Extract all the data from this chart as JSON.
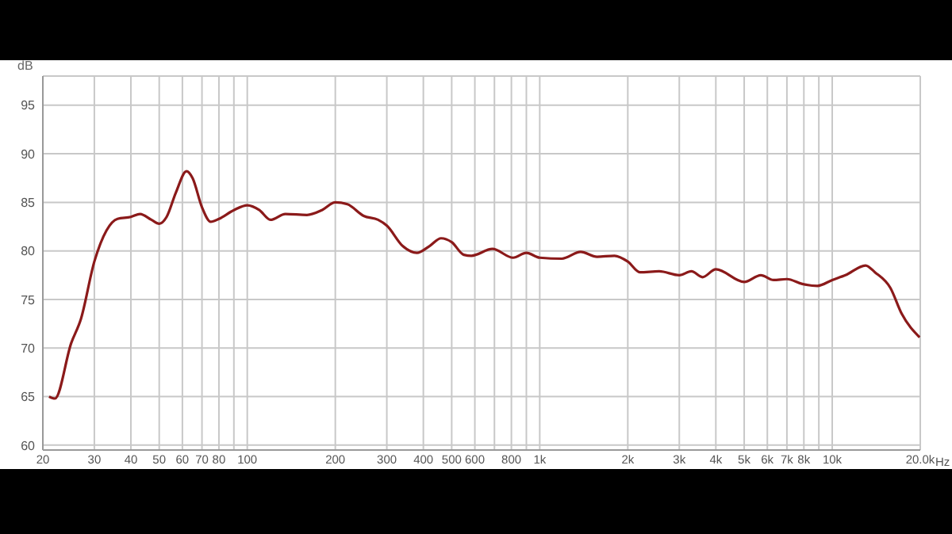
{
  "chart_data": {
    "type": "line",
    "ylabel": "dB",
    "xlabel": "Hz",
    "x": [
      21,
      22,
      25,
      27,
      30,
      33,
      36,
      40,
      43,
      47,
      50,
      53,
      57,
      62,
      65,
      70,
      75,
      80,
      90,
      100,
      110,
      120,
      135,
      160,
      180,
      200,
      220,
      250,
      280,
      300,
      340,
      380,
      420,
      460,
      500,
      550,
      584,
      689,
      811,
      900,
      1000,
      1190,
      1380,
      1570,
      1800,
      2000,
      2200,
      2560,
      3000,
      3300,
      3600,
      4000,
      5000,
      5700,
      6300,
      7000,
      7900,
      8900,
      10000,
      11100,
      13000,
      14000,
      15800,
      17300,
      19900
    ],
    "series": [
      {
        "color": "#8b1a1a",
        "values": [
          65.0,
          64.8,
          70.5,
          73.0,
          78.9,
          82.1,
          83.3,
          83.5,
          83.8,
          83.2,
          82.8,
          83.5,
          86.0,
          88.2,
          87.5,
          84.5,
          83.0,
          83.3,
          84.2,
          84.7,
          84.2,
          83.2,
          83.8,
          83.7,
          84.2,
          85.0,
          84.8,
          83.6,
          83.2,
          82.6,
          80.5,
          79.8,
          80.5,
          81.3,
          80.9,
          79.6,
          79.5,
          80.2,
          79.3,
          79.8,
          79.3,
          79.2,
          79.9,
          79.4,
          79.5,
          78.9,
          77.8,
          77.9,
          77.5,
          77.9,
          77.3,
          78.1,
          76.8,
          77.5,
          77.0,
          77.1,
          76.6,
          76.4,
          77.0,
          77.5,
          78.5,
          77.8,
          76.2,
          73.5,
          71.1
        ]
      }
    ],
    "log": "x",
    "xlim": [
      20,
      20000
    ],
    "ylim": [
      59.5,
      98
    ],
    "xticks": [
      20,
      30,
      40,
      50,
      60,
      70,
      80,
      {
        "value": 90,
        "label": null
      },
      100,
      200,
      300,
      400,
      500,
      600,
      {
        "value": 700,
        "label": null
      },
      800,
      {
        "value": 900,
        "label": null
      },
      {
        "value": 1000,
        "label": "1k"
      },
      {
        "value": 2000,
        "label": "2k"
      },
      {
        "value": 3000,
        "label": "3k"
      },
      {
        "value": 4000,
        "label": "4k"
      },
      {
        "value": 5000,
        "label": "5k"
      },
      {
        "value": 6000,
        "label": "6k"
      },
      {
        "value": 7000,
        "label": "7k"
      },
      {
        "value": 8000,
        "label": "8k"
      },
      {
        "value": 9000,
        "label": null
      },
      {
        "value": 10000,
        "label": "10k"
      },
      {
        "value": 20000,
        "label": "20.0k"
      }
    ],
    "yticks": [
      60,
      65,
      70,
      75,
      80,
      85,
      90,
      95
    ],
    "grid": true,
    "legend": false,
    "marker": "none",
    "line_style": "solid"
  }
}
